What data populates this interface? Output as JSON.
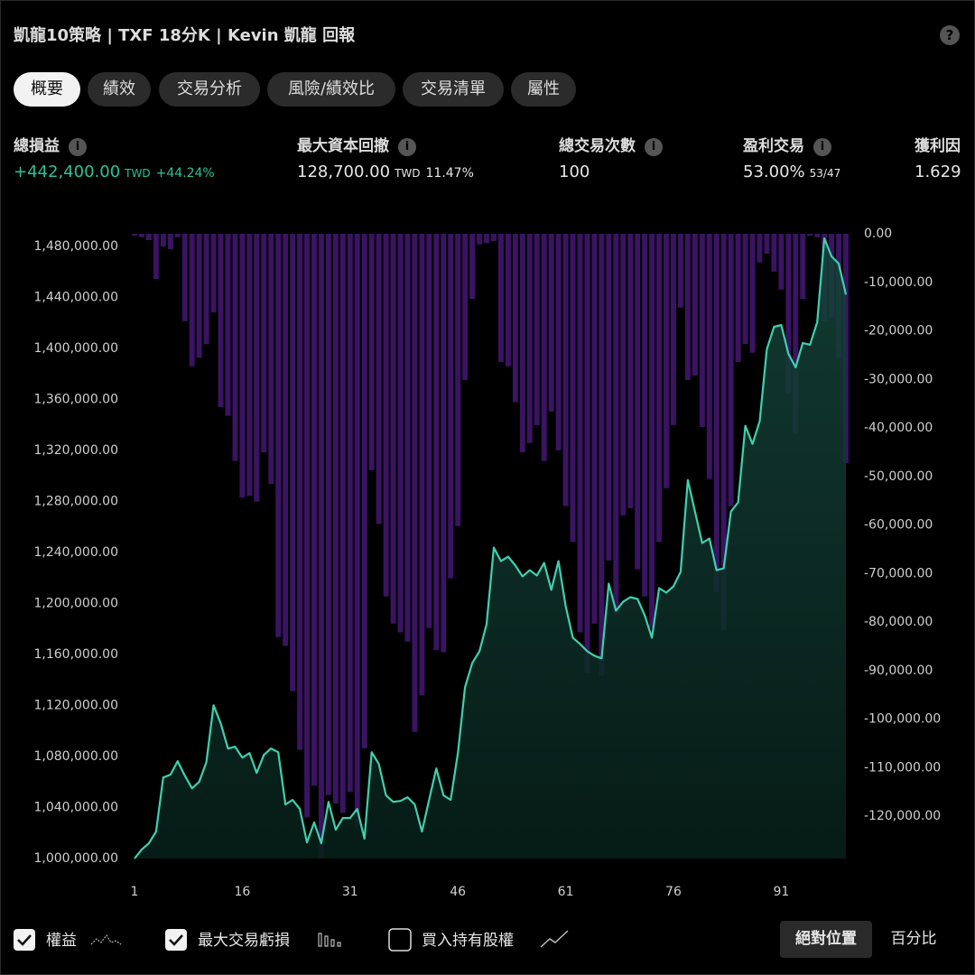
{
  "header": {
    "title": "凱龍10策略 | TXF 18分K | Kevin 凱龍 回報"
  },
  "tabs": [
    "概要",
    "績效",
    "交易分析",
    "風險/績效比",
    "交易清單",
    "屬性"
  ],
  "metrics": [
    {
      "label": "總損益",
      "value": "+442,400.00",
      "unit": "TWD",
      "extra": "+44.24%"
    },
    {
      "label": "最大資本回撤",
      "value": "128,700.00",
      "unit": "TWD",
      "extra": "11.47%"
    },
    {
      "label": "總交易次數",
      "value": "100"
    },
    {
      "label": "盈利交易",
      "value": "53.00%",
      "extra": "53/47"
    },
    {
      "label": "獲利因",
      "value": "1.629"
    }
  ],
  "chart_data": {
    "type": "line",
    "x": [
      1,
      2,
      3,
      4,
      5,
      6,
      7,
      8,
      9,
      10,
      11,
      12,
      13,
      14,
      15,
      16,
      17,
      18,
      19,
      20,
      21,
      22,
      23,
      24,
      25,
      26,
      27,
      28,
      29,
      30,
      31,
      32,
      33,
      34,
      35,
      36,
      37,
      38,
      39,
      40,
      41,
      42,
      43,
      44,
      45,
      46,
      47,
      48,
      49,
      50,
      51,
      52,
      53,
      54,
      55,
      56,
      57,
      58,
      59,
      60,
      61,
      62,
      63,
      64,
      65,
      66,
      67,
      68,
      69,
      70,
      71,
      72,
      73,
      74,
      75,
      76,
      77,
      78,
      79,
      80,
      81,
      82,
      83,
      84,
      85,
      86,
      87,
      88,
      89,
      90,
      91,
      92,
      93,
      94,
      95,
      96,
      97,
      98,
      99,
      100
    ],
    "xlim": [
      1,
      100
    ],
    "xticks": [
      1,
      16,
      31,
      46,
      61,
      76,
      91
    ],
    "ylim": [
      1000000,
      1490000
    ],
    "yticks": [
      {
        "value": 1000000,
        "label": "1,000,000.00"
      },
      {
        "value": 1040000,
        "label": "1,040,000.00"
      },
      {
        "value": 1080000,
        "label": "1,080,000.00"
      },
      {
        "value": 1120000,
        "label": "1,120,000.00"
      },
      {
        "value": 1160000,
        "label": "1,160,000.00"
      },
      {
        "value": 1200000,
        "label": "1,200,000.00"
      },
      {
        "value": 1240000,
        "label": "1,240,000.00"
      },
      {
        "value": 1280000,
        "label": "1,280,000.00"
      },
      {
        "value": 1320000,
        "label": "1,320,000.00"
      },
      {
        "value": 1360000,
        "label": "1,360,000.00"
      },
      {
        "value": 1400000,
        "label": "1,400,000.00"
      },
      {
        "value": 1440000,
        "label": "1,440,000.00"
      },
      {
        "value": 1480000,
        "label": "1,480,000.00"
      }
    ],
    "y2lim": [
      -128700,
      0
    ],
    "y2ticks": [
      {
        "value": 0,
        "label": "0.00"
      },
      {
        "value": -10000,
        "label": "-10,000.00"
      },
      {
        "value": -20000,
        "label": "-20,000.00"
      },
      {
        "value": -30000,
        "label": "-30,000.00"
      },
      {
        "value": -40000,
        "label": "-40,000.00"
      },
      {
        "value": -50000,
        "label": "-50,000.00"
      },
      {
        "value": -60000,
        "label": "-60,000.00"
      },
      {
        "value": -70000,
        "label": "-70,000.00"
      },
      {
        "value": -80000,
        "label": "-80,000.00"
      },
      {
        "value": -90000,
        "label": "-90,000.00"
      },
      {
        "value": -100000,
        "label": "-100,000.00"
      },
      {
        "value": -110000,
        "label": "-110,000.00"
      },
      {
        "value": -120000,
        "label": "-120,000.00"
      }
    ],
    "series": [
      {
        "name": "權益",
        "color": "#3fd1ae",
        "values": [
          1000000,
          1007100,
          1012000,
          1021200,
          1063600,
          1065800,
          1076400,
          1065000,
          1055100,
          1060100,
          1075600,
          1120200,
          1106000,
          1086300,
          1087700,
          1079200,
          1082700,
          1067200,
          1081300,
          1086300,
          1083400,
          1042400,
          1046000,
          1038900,
          1012700,
          1028300,
          1012000,
          1044500,
          1022600,
          1031800,
          1031800,
          1038900,
          1015600,
          1083400,
          1074200,
          1049500,
          1044500,
          1045200,
          1048100,
          1042400,
          1021200,
          1046000,
          1070700,
          1049500,
          1046000,
          1082700,
          1134300,
          1153400,
          1162600,
          1183800,
          1243900,
          1233300,
          1236800,
          1229800,
          1221300,
          1226200,
          1222000,
          1231900,
          1210700,
          1233300,
          1198000,
          1173200,
          1168300,
          1162600,
          1159100,
          1157000,
          1215600,
          1194400,
          1201500,
          1205000,
          1203600,
          1190900,
          1173200,
          1212100,
          1208600,
          1213500,
          1224800,
          1296900,
          1272200,
          1247500,
          1251000,
          1226200,
          1227700,
          1272200,
          1279300,
          1339400,
          1325200,
          1342900,
          1399500,
          1417100,
          1418500,
          1395900,
          1385300,
          1404400,
          1403000,
          1420700,
          1486400,
          1472300,
          1466600,
          1442400
        ]
      },
      {
        "name": "最大交易虧損",
        "color": "#3a1462",
        "type": "bar",
        "axis": "y2",
        "values": [
          -400,
          -700,
          -1300,
          -9300,
          -2600,
          -3200,
          -700,
          -18000,
          -27300,
          -25500,
          -22700,
          -16200,
          -35700,
          -37500,
          -46800,
          -54300,
          -54000,
          -55200,
          -45000,
          -51500,
          -83100,
          -84900,
          -94200,
          -106300,
          -120200,
          -113700,
          -128700,
          -115600,
          -117400,
          -119300,
          -115000,
          -122100,
          -106000,
          -48700,
          -59800,
          -74700,
          -80300,
          -82100,
          -84000,
          -102600,
          -95100,
          -81200,
          -85800,
          -86200,
          -71000,
          -60200,
          -30100,
          -13400,
          -2200,
          -1900,
          -1500,
          -26400,
          -27300,
          -34700,
          -45000,
          -43100,
          -39400,
          -46800,
          -36600,
          -44600,
          -56100,
          -63500,
          -82100,
          -90500,
          -80300,
          -91000,
          -67300,
          -78400,
          -58000,
          -56500,
          -69100,
          -74700,
          -81200,
          -63500,
          -52400,
          -39400,
          -15200,
          -30100,
          -29200,
          -39800,
          -50500,
          -73800,
          -81600,
          -56100,
          -26400,
          -22700,
          -24500,
          -5900,
          -4100,
          -7800,
          -11500,
          -32900,
          -41200,
          -13400,
          -400,
          -700,
          -18000,
          -17100,
          -25500,
          -47200
        ]
      }
    ]
  },
  "controls": {
    "buy_hold": "買入持有股權",
    "absolute": "絕對位置",
    "percent": "百分比"
  }
}
